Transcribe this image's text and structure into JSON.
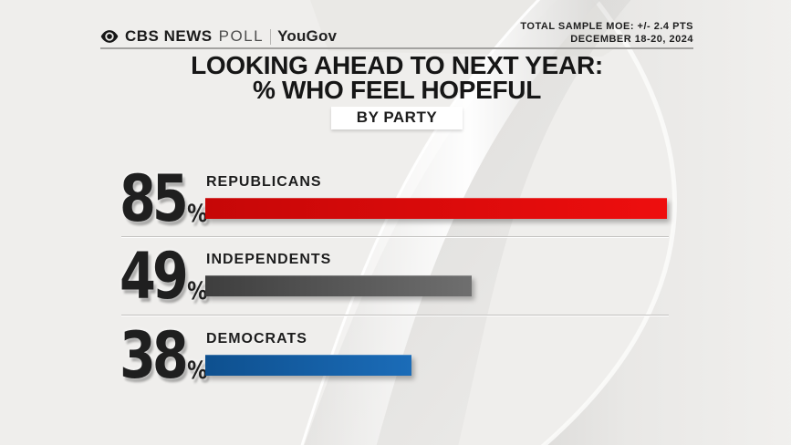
{
  "header": {
    "logo": {
      "eye_icon": "cbs-eye",
      "cbs": "CBS NEWS",
      "poll": "POLL",
      "partner": "YouGov"
    },
    "moe_line1": "TOTAL SAMPLE MOE: +/- 2.4 PTS",
    "moe_line2": "DECEMBER 18-20, 2024"
  },
  "title": {
    "line1": "LOOKING AHEAD TO NEXT YEAR:",
    "line2": "% WHO FEEL HOPEFUL",
    "badge": "BY PARTY"
  },
  "chart_data": {
    "type": "bar",
    "orientation": "horizontal",
    "title": "LOOKING AHEAD TO NEXT YEAR: % WHO FEEL HOPEFUL",
    "subtitle": "BY PARTY",
    "categories": [
      "REPUBLICANS",
      "INDEPENDENTS",
      "DEMOCRATS"
    ],
    "values": [
      85,
      49,
      38
    ],
    "unit": "%",
    "xlim": [
      0,
      100
    ],
    "grid": false,
    "legend": false,
    "bar_colors": [
      "#dc0a0a",
      "#565656",
      "#1565b0"
    ],
    "rows": [
      {
        "party": "REPUBLICANS",
        "value": "85",
        "unit": "%",
        "color_left": "#c60707",
        "color_right": "#ee0e0e"
      },
      {
        "party": "INDEPENDENTS",
        "value": "49",
        "unit": "%",
        "color_left": "#3e3e3e",
        "color_right": "#6f6f6f"
      },
      {
        "party": "DEMOCRATS",
        "value": "38",
        "unit": "%",
        "color_left": "#0e508f",
        "color_right": "#1b6cb8"
      }
    ]
  }
}
